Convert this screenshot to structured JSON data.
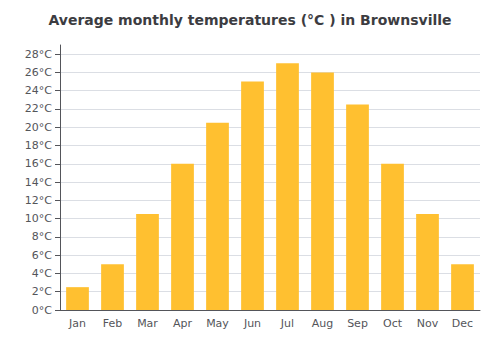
{
  "chart_data": {
    "type": "bar",
    "title": "Average monthly temperatures (°C ) in Brownsville",
    "categories": [
      "Jan",
      "Feb",
      "Mar",
      "Apr",
      "May",
      "Jun",
      "Jul",
      "Aug",
      "Sep",
      "Oct",
      "Nov",
      "Dec"
    ],
    "values": [
      2.5,
      5.0,
      10.5,
      16.0,
      20.5,
      25.0,
      27.0,
      26.0,
      22.5,
      16.0,
      10.5,
      5.0
    ],
    "color": "#FFC030",
    "ylim": [
      0,
      29
    ],
    "yticks": [
      {
        "value": 0,
        "label": "0°C"
      },
      {
        "value": 2,
        "label": "2°C"
      },
      {
        "value": 4,
        "label": "4°C"
      },
      {
        "value": 6,
        "label": "6°C"
      },
      {
        "value": 8,
        "label": "8°C"
      },
      {
        "value": 10,
        "label": "10°C"
      },
      {
        "value": 12,
        "label": "12°C"
      },
      {
        "value": 14,
        "label": "14°C"
      },
      {
        "value": 16,
        "label": "16°C"
      },
      {
        "value": 18,
        "label": "18°C"
      },
      {
        "value": 20,
        "label": "20°C"
      },
      {
        "value": 22,
        "label": "22°C"
      },
      {
        "value": 24,
        "label": "24°C"
      },
      {
        "value": 26,
        "label": "26°C"
      },
      {
        "value": 28,
        "label": "28°C"
      }
    ],
    "grid": true
  }
}
